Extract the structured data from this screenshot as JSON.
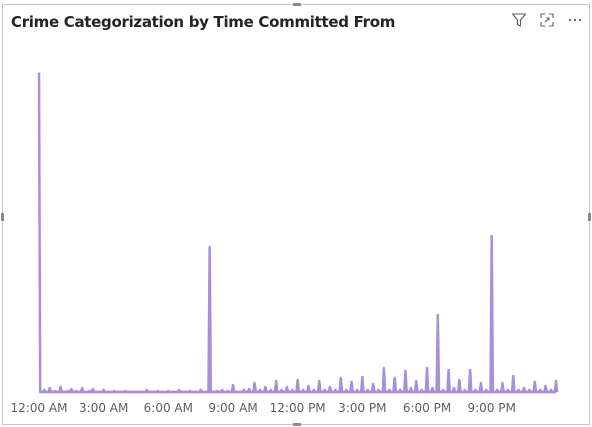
{
  "visual": {
    "title": "Crime Categorization by Time Committed From",
    "header_icons": [
      "filter-icon",
      "focus-mode-icon",
      "more-options-icon"
    ]
  },
  "chart_data": {
    "type": "line",
    "title": "Crime Categorization by Time Committed From",
    "xlabel": "",
    "ylabel": "",
    "x_unit": "minutes since 12:00 AM",
    "x_range": [
      0,
      1439
    ],
    "ylim": [
      0,
      320
    ],
    "grid": false,
    "legend": "none",
    "color": "#a98fd8",
    "x_tick_labels": [
      "12:00 AM",
      "3:00 AM",
      "6:00 AM",
      "9:00 AM",
      "12:00 PM",
      "3:00 PM",
      "6:00 PM",
      "9:00 PM"
    ],
    "x_tick_values": [
      0,
      180,
      360,
      540,
      720,
      900,
      1080,
      1260
    ],
    "peaks": [
      {
        "x": 0,
        "y": 320
      },
      {
        "x": 15,
        "y": 3
      },
      {
        "x": 30,
        "y": 5
      },
      {
        "x": 45,
        "y": 2
      },
      {
        "x": 60,
        "y": 6
      },
      {
        "x": 80,
        "y": 2
      },
      {
        "x": 90,
        "y": 4
      },
      {
        "x": 105,
        "y": 2
      },
      {
        "x": 120,
        "y": 5
      },
      {
        "x": 140,
        "y": 2
      },
      {
        "x": 150,
        "y": 4
      },
      {
        "x": 165,
        "y": 1
      },
      {
        "x": 180,
        "y": 3
      },
      {
        "x": 200,
        "y": 1
      },
      {
        "x": 210,
        "y": 2
      },
      {
        "x": 240,
        "y": 2
      },
      {
        "x": 270,
        "y": 1
      },
      {
        "x": 300,
        "y": 3
      },
      {
        "x": 330,
        "y": 2
      },
      {
        "x": 360,
        "y": 2
      },
      {
        "x": 390,
        "y": 3
      },
      {
        "x": 420,
        "y": 2
      },
      {
        "x": 450,
        "y": 3
      },
      {
        "x": 475,
        "y": 146
      },
      {
        "x": 495,
        "y": 2
      },
      {
        "x": 510,
        "y": 3
      },
      {
        "x": 525,
        "y": 2
      },
      {
        "x": 540,
        "y": 8
      },
      {
        "x": 570,
        "y": 3
      },
      {
        "x": 585,
        "y": 4
      },
      {
        "x": 600,
        "y": 10
      },
      {
        "x": 615,
        "y": 3
      },
      {
        "x": 630,
        "y": 6
      },
      {
        "x": 645,
        "y": 3
      },
      {
        "x": 660,
        "y": 12
      },
      {
        "x": 675,
        "y": 3
      },
      {
        "x": 690,
        "y": 6
      },
      {
        "x": 705,
        "y": 3
      },
      {
        "x": 720,
        "y": 13
      },
      {
        "x": 735,
        "y": 3
      },
      {
        "x": 750,
        "y": 7
      },
      {
        "x": 765,
        "y": 3
      },
      {
        "x": 780,
        "y": 12
      },
      {
        "x": 795,
        "y": 3
      },
      {
        "x": 810,
        "y": 6
      },
      {
        "x": 825,
        "y": 3
      },
      {
        "x": 840,
        "y": 15
      },
      {
        "x": 855,
        "y": 3
      },
      {
        "x": 870,
        "y": 11
      },
      {
        "x": 885,
        "y": 3
      },
      {
        "x": 900,
        "y": 16
      },
      {
        "x": 915,
        "y": 3
      },
      {
        "x": 930,
        "y": 9
      },
      {
        "x": 945,
        "y": 3
      },
      {
        "x": 960,
        "y": 25
      },
      {
        "x": 975,
        "y": 3
      },
      {
        "x": 990,
        "y": 15
      },
      {
        "x": 1005,
        "y": 3
      },
      {
        "x": 1020,
        "y": 22
      },
      {
        "x": 1035,
        "y": 5
      },
      {
        "x": 1050,
        "y": 12
      },
      {
        "x": 1065,
        "y": 3
      },
      {
        "x": 1080,
        "y": 25
      },
      {
        "x": 1095,
        "y": 5
      },
      {
        "x": 1110,
        "y": 78
      },
      {
        "x": 1125,
        "y": 3
      },
      {
        "x": 1140,
        "y": 23
      },
      {
        "x": 1155,
        "y": 5
      },
      {
        "x": 1170,
        "y": 13
      },
      {
        "x": 1185,
        "y": 3
      },
      {
        "x": 1200,
        "y": 23
      },
      {
        "x": 1215,
        "y": 3
      },
      {
        "x": 1230,
        "y": 10
      },
      {
        "x": 1245,
        "y": 3
      },
      {
        "x": 1260,
        "y": 157
      },
      {
        "x": 1275,
        "y": 3
      },
      {
        "x": 1290,
        "y": 10
      },
      {
        "x": 1305,
        "y": 3
      },
      {
        "x": 1320,
        "y": 17
      },
      {
        "x": 1335,
        "y": 3
      },
      {
        "x": 1350,
        "y": 5
      },
      {
        "x": 1365,
        "y": 3
      },
      {
        "x": 1380,
        "y": 11
      },
      {
        "x": 1395,
        "y": 3
      },
      {
        "x": 1410,
        "y": 7
      },
      {
        "x": 1425,
        "y": 3
      },
      {
        "x": 1439,
        "y": 12
      }
    ]
  }
}
